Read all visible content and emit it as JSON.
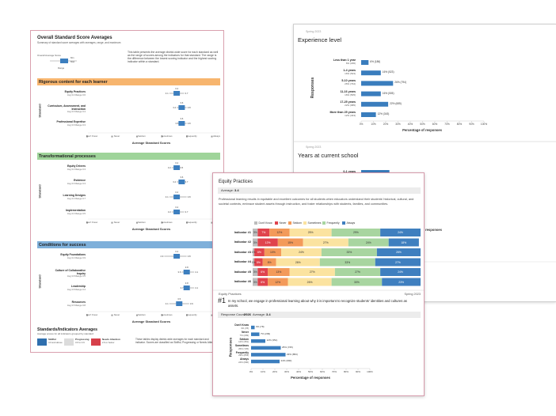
{
  "score_card": {
    "title": "Overall Standard Score Averages",
    "subtitle": "Summary of standard score averages with averages, range, and maximum",
    "key": {
      "label": "Overall Average Score",
      "min": "Min",
      "max": "Max",
      "range": "Range"
    },
    "description": "This table presents the average district-wide score for each standard as well as the range of scores among the indicators for that standard. The range is the difference between the lowest scoring indicator and the highest scoring indicator within a standard.",
    "axis_label": "Standard",
    "x_label": "Average Standard Scores",
    "scale": [
      "Don't Know",
      "Never",
      "Seldom",
      "Sometimes",
      "Frequently",
      "Always"
    ],
    "sections": [
      {
        "title": "Rigorous content for each learner",
        "color": "#f7b56e",
        "items": [
          {
            "name": "Equity Practices",
            "stats": "Avg 3.4  Range 0.6",
            "min": 3.1,
            "avg": 3.4,
            "max": 3.7
          },
          {
            "name": "Curriculum, Assessment, and Instruction",
            "stats": "Avg 3.6  Range 0.4",
            "min": 3.4,
            "avg": 3.6,
            "max": 3.8
          },
          {
            "name": "Professional Expertise",
            "stats": "Avg 3.6  Range 0.3",
            "min": 3.5,
            "avg": 3.6,
            "max": 3.8
          }
        ]
      },
      {
        "title": "Transformational processes",
        "color": "#9fd49a",
        "items": [
          {
            "name": "Equity Drivers",
            "stats": "Avg 3.4  Range 0.3",
            "min": 3.2,
            "avg": 3.4,
            "max": 3.5
          },
          {
            "name": "Evidence",
            "stats": "Avg 3.6  Range 0.3",
            "min": 3.4,
            "avg": 3.6,
            "max": 3.7
          },
          {
            "name": "Learning Designs",
            "stats": "Avg 3.4  Range 0.7",
            "min": 3.1,
            "avg": 3.4,
            "max": 3.8
          },
          {
            "name": "Implementation",
            "stats": "Avg 3.4  Range 0.5",
            "min": 3.2,
            "avg": 3.4,
            "max": 3.7
          }
        ]
      },
      {
        "title": "Conditions for success",
        "color": "#7fb0da",
        "items": [
          {
            "name": "Equity Foundations",
            "stats": "Avg 3.4  Range 0.9",
            "min": 2.9,
            "avg": 3.4,
            "max": 3.8
          },
          {
            "name": "Culture of Collaborative Inquiry",
            "stats": "Avg 3.8  Range 0.5",
            "min": 3.6,
            "avg": 3.8,
            "max": 4.1
          },
          {
            "name": "Leadership",
            "stats": "Avg 3.8  Range 0.4",
            "min": 3.7,
            "avg": 3.8,
            "max": 4.1
          },
          {
            "name": "Resources",
            "stats": "Avg 3.5  Range 0.8",
            "min": 3.1,
            "avg": 3.5,
            "max": 3.9
          }
        ]
      }
    ],
    "bottom": {
      "title": "Standards/Indicators Averages",
      "subtitle": "Average scores for all indicators grouped by standard",
      "legend": [
        {
          "name": "Skillful",
          "range": "4.0 and above",
          "color": "#2f6fae"
        },
        {
          "name": "Progressing",
          "range": "3.0 to 3.9",
          "color": "#dcdcdc"
        },
        {
          "name": "Needs Attention",
          "range": "2.9 or below",
          "color": "#d6404a"
        }
      ],
      "text": "These tables display district-wide averages for each standard and indicator. Scores are classified as Skillful, Progressing or Needs Attention."
    }
  },
  "experience_card": {
    "spring": "Spring 2023",
    "title": "Experience level",
    "chart": {
      "type": "bar",
      "categories": [
        "Less than 1 year",
        "1-4 years",
        "5-10 years",
        "11-16 years",
        "17-25 years",
        "More than 25 years"
      ],
      "values": [
        6,
        16,
        26,
        16,
        22,
        12
      ],
      "value_labels": [
        "6% (186)",
        "16% (523)",
        "26% (794)",
        "16% (505)",
        "22% (685)",
        "12% (343)"
      ],
      "color": "#3a7dbd",
      "xlim": [
        0,
        100
      ],
      "xticks": [
        {
          "value": 0,
          "label": "0%"
        },
        {
          "value": 10,
          "label": "10%"
        },
        {
          "value": 20,
          "label": "20%"
        },
        {
          "value": 30,
          "label": "30%"
        },
        {
          "value": 40,
          "label": "40%"
        },
        {
          "value": 50,
          "label": "50%"
        },
        {
          "value": 60,
          "label": "60%"
        },
        {
          "value": 70,
          "label": "70%"
        },
        {
          "value": 80,
          "label": "80%"
        },
        {
          "value": 90,
          "label": "90%"
        },
        {
          "value": 100,
          "label": "100%"
        }
      ],
      "x_label": "Percentage of responses",
      "y_label": "Responses"
    },
    "second": {
      "spring": "Spring 2023",
      "title": "Years at current school",
      "categories": [
        "0-1 years"
      ],
      "values": [
        23
      ],
      "x_label": "Percentage of responses"
    }
  },
  "equity_card": {
    "title": "Equity Practices",
    "average_label": "Average:",
    "average": 3.4,
    "description": "Professional learning results in equitable and excellent outcomes for all students when educators understand their students' historical, cultural, and societal contexts, embrace student assets through instruction, and foster relationships with students, families, and communities.",
    "stacked": {
      "legend": [
        "Don't Know",
        "Never",
        "Seldom",
        "Sometimes",
        "Frequently",
        "Always"
      ],
      "colors": [
        "#bdbdbd",
        "#e0434d",
        "#f39a5a",
        "#fbe3a0",
        "#a8d5a0",
        "#3f7fbf"
      ],
      "rows": [
        {
          "name": "Indicator #1",
          "values": [
            3,
            7,
            12,
            25,
            29,
            24
          ],
          "value_labels": [
            "3%",
            "7%",
            "12%",
            "25%",
            "29%",
            "24%"
          ]
        },
        {
          "name": "Indicator #2",
          "values": [
            3,
            12,
            15,
            27,
            24,
            18
          ],
          "value_labels": [
            "3%",
            "12%",
            "15%",
            "27%",
            "24%",
            "18%"
          ]
        },
        {
          "name": "Indicator #3",
          "values": [
            1,
            6,
            10,
            24,
            33,
            26
          ],
          "value_labels": [
            "1%",
            "6%",
            "10%",
            "24%",
            "33%",
            "26%"
          ]
        },
        {
          "name": "Indicator #4",
          "values": [
            1,
            5,
            8,
            26,
            33,
            27
          ],
          "value_labels": [
            "1%",
            "5%",
            "8%",
            "26%",
            "33%",
            "27%"
          ]
        },
        {
          "name": "Indicator #5",
          "values": [
            3,
            6,
            13,
            27,
            27,
            24
          ],
          "value_labels": [
            "3%",
            "6%",
            "13%",
            "27%",
            "27%",
            "24%"
          ]
        },
        {
          "name": "Indicator #6",
          "values": [
            3,
            6,
            12,
            26,
            30,
            23
          ],
          "value_labels": [
            "3%",
            "6%",
            "12%",
            "26%",
            "30%",
            "23%"
          ]
        }
      ]
    },
    "question": {
      "section": "Equity Practices",
      "spring": "Spring 2023",
      "number": "#1",
      "text": "In my school, we engage in professional learning about why it is important to recognize students' identities and cultures as assets.",
      "count_label": "Response Count:",
      "count": 2926,
      "average_label": "Average:",
      "average": 3.4
    },
    "chart": {
      "type": "bar",
      "categories": [
        "Don't Know",
        "Never",
        "Seldom",
        "Sometimes",
        "Frequently",
        "Always"
      ],
      "values": [
        3,
        7,
        12,
        25,
        29,
        24
      ],
      "value_labels": [
        "3% (78)",
        "7% (209)",
        "12% (351)",
        "25% (725)",
        "29% (853)",
        "24% (690)"
      ],
      "color": "#3a7dbd",
      "xlim": [
        0,
        100
      ],
      "xticks": [
        {
          "value": 0,
          "label": "0%"
        },
        {
          "value": 10,
          "label": "10%"
        },
        {
          "value": 20,
          "label": "20%"
        },
        {
          "value": 30,
          "label": "30%"
        },
        {
          "value": 40,
          "label": "40%"
        },
        {
          "value": 50,
          "label": "50%"
        },
        {
          "value": 60,
          "label": "60%"
        },
        {
          "value": 70,
          "label": "70%"
        },
        {
          "value": 80,
          "label": "80%"
        },
        {
          "value": 90,
          "label": "90%"
        },
        {
          "value": 100,
          "label": "100%"
        }
      ],
      "x_label": "Percentage of responses",
      "y_label": "Responses"
    }
  }
}
